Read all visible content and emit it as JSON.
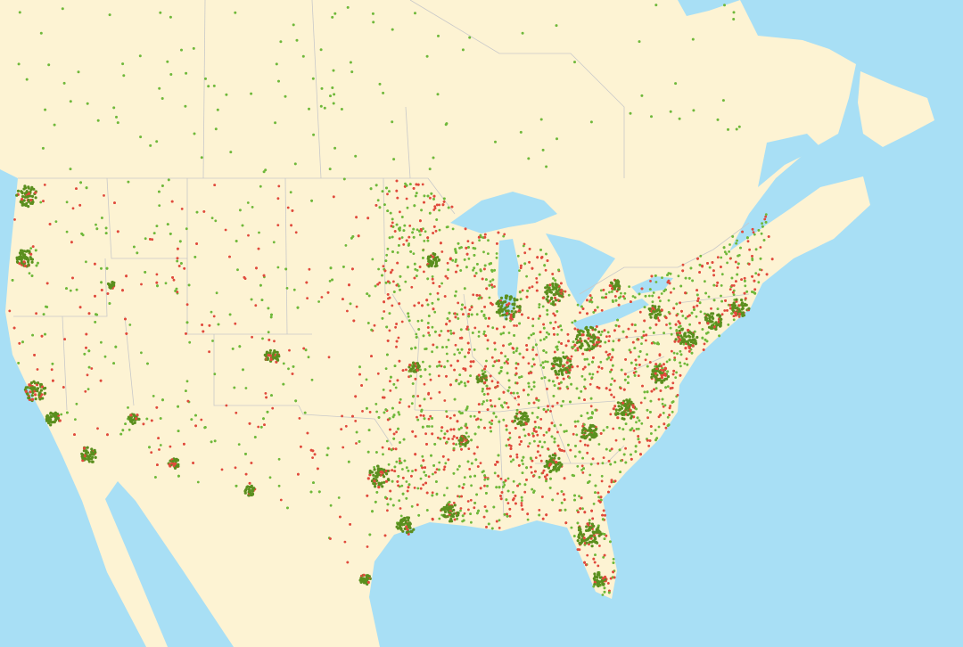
{
  "map": {
    "colors": {
      "water": "#a8dff5",
      "land": "#fdf3d3",
      "border": "#c9c9c9",
      "dot_green": "#6fb83a",
      "dot_green_dense": "#5a8f1e",
      "dot_red": "#e04a3c"
    },
    "layers": [
      "land",
      "lakes",
      "borders",
      "green-dots",
      "red-dots"
    ]
  }
}
